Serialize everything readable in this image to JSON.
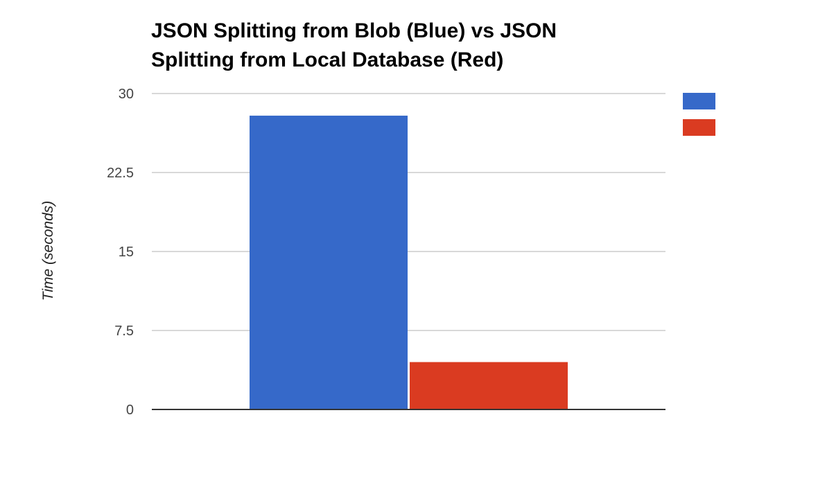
{
  "chart_data": {
    "type": "bar",
    "title_lines": [
      "JSON Splitting from Blob (Blue) vs JSON",
      "Splitting from Local Database (Red)"
    ],
    "xlabel": "",
    "ylabel": "Time (seconds)",
    "ylim": [
      0,
      30
    ],
    "yticks": [
      "0",
      "7.5",
      "15",
      "22.5",
      "30"
    ],
    "grid": true,
    "legend_position": "top-right",
    "categories": [
      ""
    ],
    "series": [
      {
        "color": "#3669c9",
        "values": [
          27.9
        ]
      },
      {
        "color": "#da3b21",
        "values": [
          4.5
        ]
      }
    ]
  }
}
